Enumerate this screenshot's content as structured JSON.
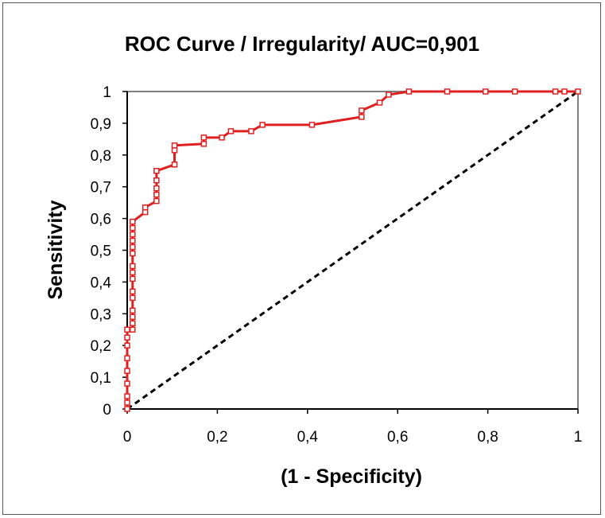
{
  "chart_data": {
    "type": "line",
    "title": "ROC Curve / Irregularity/ AUC=0,901",
    "xlabel": "(1 - Specificity)",
    "ylabel": "Sensitivity",
    "xlim": [
      0,
      1
    ],
    "ylim": [
      0,
      1
    ],
    "x_ticks": [
      "0",
      "0,2",
      "0,4",
      "0,6",
      "0,8",
      "1"
    ],
    "y_ticks": [
      "0",
      "0,1",
      "0,2",
      "0,3",
      "0,4",
      "0,5",
      "0,6",
      "0,7",
      "0,8",
      "0,9",
      "1"
    ],
    "grid": false,
    "legend": "none",
    "colors": {
      "roc": "#e02020",
      "reference": "#000000",
      "frame": "#7f7f7f"
    },
    "series": [
      {
        "line_style": "solid",
        "markers": "open-square",
        "x": [
          0,
          0,
          0,
          0,
          0,
          0,
          0,
          0,
          0,
          0.012,
          0.012,
          0.012,
          0.012,
          0.012,
          0.012,
          0.012,
          0.012,
          0.012,
          0.012,
          0.012,
          0.012,
          0.012,
          0.012,
          0.012,
          0.04,
          0.04,
          0.065,
          0.065,
          0.065,
          0.065,
          0.065,
          0.105,
          0.105,
          0.105,
          0.17,
          0.17,
          0.21,
          0.23,
          0.275,
          0.3,
          0.41,
          0.52,
          0.52,
          0.56,
          0.58,
          0.625,
          0.71,
          0.795,
          0.86,
          0.95,
          0.97,
          1.0
        ],
        "y": [
          0,
          0.02,
          0.04,
          0.08,
          0.12,
          0.16,
          0.2,
          0.225,
          0.25,
          0.25,
          0.27,
          0.29,
          0.31,
          0.35,
          0.37,
          0.41,
          0.43,
          0.45,
          0.49,
          0.51,
          0.53,
          0.55,
          0.57,
          0.59,
          0.62,
          0.635,
          0.655,
          0.675,
          0.695,
          0.72,
          0.75,
          0.77,
          0.815,
          0.83,
          0.835,
          0.855,
          0.855,
          0.875,
          0.875,
          0.895,
          0.895,
          0.92,
          0.94,
          0.965,
          0.99,
          1.0,
          1.0,
          1.0,
          1.0,
          1.0,
          1.0,
          1.0
        ]
      },
      {
        "line_style": "dashed",
        "x": [
          0,
          1
        ],
        "y": [
          0,
          1
        ]
      }
    ]
  }
}
